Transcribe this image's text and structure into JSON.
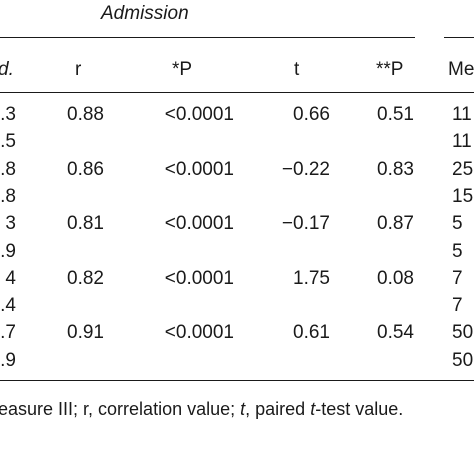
{
  "table": {
    "group_header": "Admission",
    "columns": {
      "sd": "d.",
      "r": "r",
      "p": "*P",
      "t": "t",
      "pp": "**P",
      "mean_next": "Me"
    },
    "rows": [
      {
        "sd": ".3",
        "r": "0.88",
        "p": "<0.0001",
        "t": "0.66",
        "pp": "0.51",
        "next": "11"
      },
      {
        "sd": ".5",
        "r": "",
        "p": "",
        "t": "",
        "pp": "",
        "next": "11"
      },
      {
        "sd": ".8",
        "r": "0.86",
        "p": "<0.0001",
        "t": "−0.22",
        "pp": "0.83",
        "next": "25"
      },
      {
        "sd": ".8",
        "r": "",
        "p": "",
        "t": "",
        "pp": "",
        "next": "15"
      },
      {
        "sd": "3",
        "r": "0.81",
        "p": "<0.0001",
        "t": "−0.17",
        "pp": "0.87",
        "next": "5"
      },
      {
        "sd": ".9",
        "r": "",
        "p": "",
        "t": "",
        "pp": "",
        "next": "5"
      },
      {
        "sd": "4",
        "r": "0.82",
        "p": "<0.0001",
        "t": "1.75",
        "pp": "0.08",
        "next": "7"
      },
      {
        "sd": ".4",
        "r": "",
        "p": "",
        "t": "",
        "pp": "",
        "next": "7"
      },
      {
        "sd": ".7",
        "r": "0.91",
        "p": "<0.0001",
        "t": "0.61",
        "pp": "0.54",
        "next": "50"
      },
      {
        "sd": ".9",
        "r": "",
        "p": "",
        "t": "",
        "pp": "",
        "next": "50"
      }
    ],
    "footnote": {
      "part1": "easure III; r, correlation value; ",
      "t_italic": "t",
      "part2": ", paired ",
      "t_italic2": "t",
      "part3": "-test value."
    }
  }
}
